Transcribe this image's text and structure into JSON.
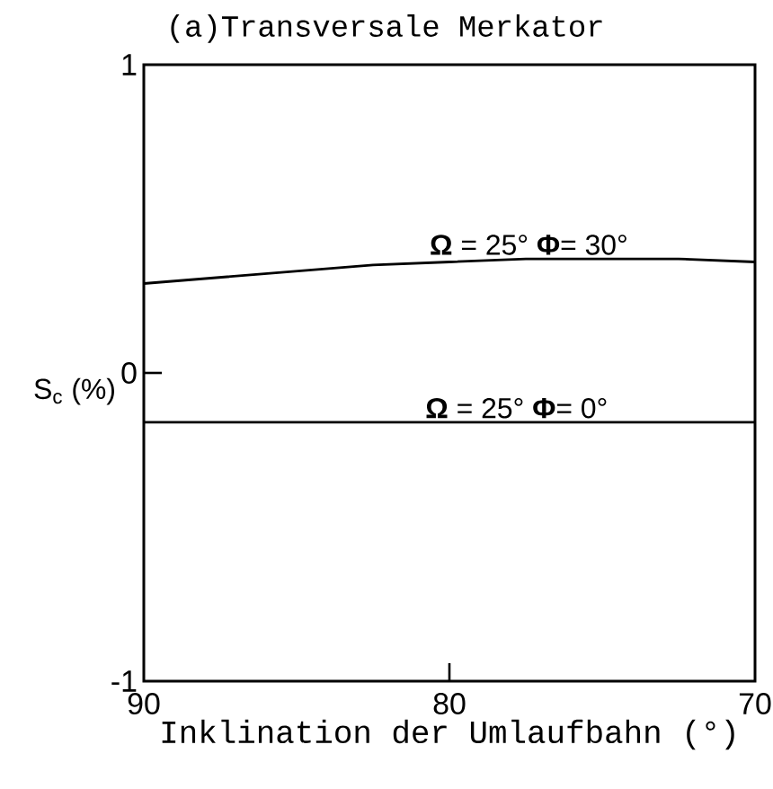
{
  "chart_data": {
    "type": "line",
    "title": "(a)Transversale Merkator",
    "xlabel": "Inklination der Umlaufbahn (°)",
    "ylabel": "S$_{c}$ (%)",
    "x": [
      90,
      87.5,
      85,
      82.5,
      80,
      77.5,
      75,
      72.5,
      70
    ],
    "series": [
      {
        "name": "**Ω** = 25° **Φ**= 30°",
        "color": "#000000",
        "values": [
          0.29,
          0.31,
          0.33,
          0.35,
          0.36,
          0.37,
          0.37,
          0.37,
          0.36
        ]
      },
      {
        "name": "**Ω** = 25° **Φ**= 0°",
        "color": "#000000",
        "values": [
          -0.16,
          -0.16,
          -0.16,
          -0.16,
          -0.16,
          -0.16,
          -0.16,
          -0.16,
          -0.16
        ]
      }
    ],
    "xlim": [
      90,
      70
    ],
    "ylim": [
      -1,
      1
    ],
    "xticks": [
      90,
      80,
      70
    ],
    "yticks": [
      -1,
      0,
      1
    ],
    "grid": false,
    "legend": false,
    "marker": "none",
    "line_style": "solid"
  }
}
